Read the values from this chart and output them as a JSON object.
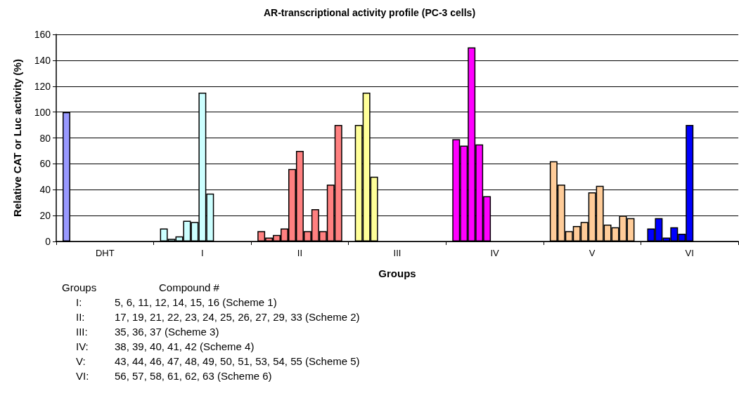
{
  "chart_data": {
    "type": "bar",
    "title": "AR-transcriptional activity profile (PC-3 cells)",
    "xlabel": "Groups",
    "ylabel": "Relative CAT or Luc activity (%)",
    "categories": [
      "DHT",
      "I",
      "II",
      "III",
      "IV",
      "V",
      "VI"
    ],
    "series": [
      {
        "colors": [
          "#9999ff",
          "#ccffff",
          "#ff8080",
          "#ffff99",
          "#ff00ff",
          "#ffcc99",
          "#0000ff"
        ],
        "values": [
          100,
          10,
          8,
          90,
          79,
          62,
          10
        ]
      },
      {
        "colors": [
          "#9999ff",
          "#ccffff",
          "#ff8080",
          "#ffff99",
          "#ff00ff",
          "#ffcc99",
          "#0000ff"
        ],
        "values": [
          null,
          2,
          3,
          115,
          74,
          44,
          18
        ]
      },
      {
        "colors": [
          "#9999ff",
          "#ccffff",
          "#ff8080",
          "#ffff99",
          "#ff00ff",
          "#ffcc99",
          "#0000ff"
        ],
        "values": [
          null,
          4,
          5,
          50,
          150,
          8,
          3
        ]
      },
      {
        "colors": [
          "#9999ff",
          "#ccffff",
          "#ff8080",
          "#ffff99",
          "#ff00ff",
          "#ffcc99",
          "#0000ff"
        ],
        "values": [
          null,
          16,
          10,
          null,
          75,
          12,
          11
        ]
      },
      {
        "colors": [
          "#9999ff",
          "#ccffff",
          "#ff8080",
          "#ffff99",
          "#ff00ff",
          "#ffcc99",
          "#0000ff"
        ],
        "values": [
          null,
          15,
          56,
          null,
          35,
          15,
          6
        ]
      },
      {
        "colors": [
          "#9999ff",
          "#ccffff",
          "#ff8080",
          "#ffff99",
          "#ff00ff",
          "#ffcc99",
          "#0000ff"
        ],
        "values": [
          null,
          115,
          70,
          null,
          null,
          38,
          90
        ]
      },
      {
        "colors": [
          "#9999ff",
          "#ccffff",
          "#ff8080",
          "#ffff99",
          "#ff00ff",
          "#ffcc99",
          "#0000ff"
        ],
        "values": [
          null,
          37,
          8,
          null,
          null,
          43,
          null
        ]
      },
      {
        "colors": [
          "#9999ff",
          "#ccffff",
          "#ff8080",
          "#ffff99",
          "#ff00ff",
          "#ffcc99",
          "#0000ff"
        ],
        "values": [
          null,
          null,
          25,
          null,
          null,
          13,
          null
        ]
      },
      {
        "colors": [
          "#9999ff",
          "#ccffff",
          "#ff8080",
          "#ffff99",
          "#ff00ff",
          "#ffcc99",
          "#0000ff"
        ],
        "values": [
          null,
          null,
          8,
          null,
          null,
          11,
          null
        ]
      },
      {
        "colors": [
          "#9999ff",
          "#ccffff",
          "#ff8080",
          "#ffff99",
          "#ff00ff",
          "#ffcc99",
          "#0000ff"
        ],
        "values": [
          null,
          null,
          44,
          null,
          null,
          20,
          null
        ]
      },
      {
        "colors": [
          "#9999ff",
          "#ccffff",
          "#ff8080",
          "#ffff99",
          "#ff00ff",
          "#ffcc99",
          "#0000ff"
        ],
        "values": [
          null,
          null,
          90,
          null,
          null,
          18,
          null
        ]
      }
    ],
    "ylim": [
      0,
      160
    ],
    "yticks": [
      0,
      20,
      40,
      60,
      80,
      100,
      120,
      140,
      160
    ],
    "grid": "y",
    "annotations": [
      "Groups",
      "Compound #",
      "I:",
      "5, 6, 11, 12, 14, 15, 16 (Scheme 1)",
      "II:",
      "17, 19, 21, 22, 23, 24, 25, 26, 27, 29, 33 (Scheme 2)",
      "III:",
      "35, 36, 37 (Scheme 3)",
      "IV:",
      "38, 39, 40, 41, 42 (Scheme 4)",
      "V:",
      "43, 44, 46, 47, 48, 49, 50, 51, 53, 54, 55 (Scheme 5)",
      "VI:",
      "56, 57, 58, 61, 62, 63 (Scheme 6)"
    ]
  }
}
